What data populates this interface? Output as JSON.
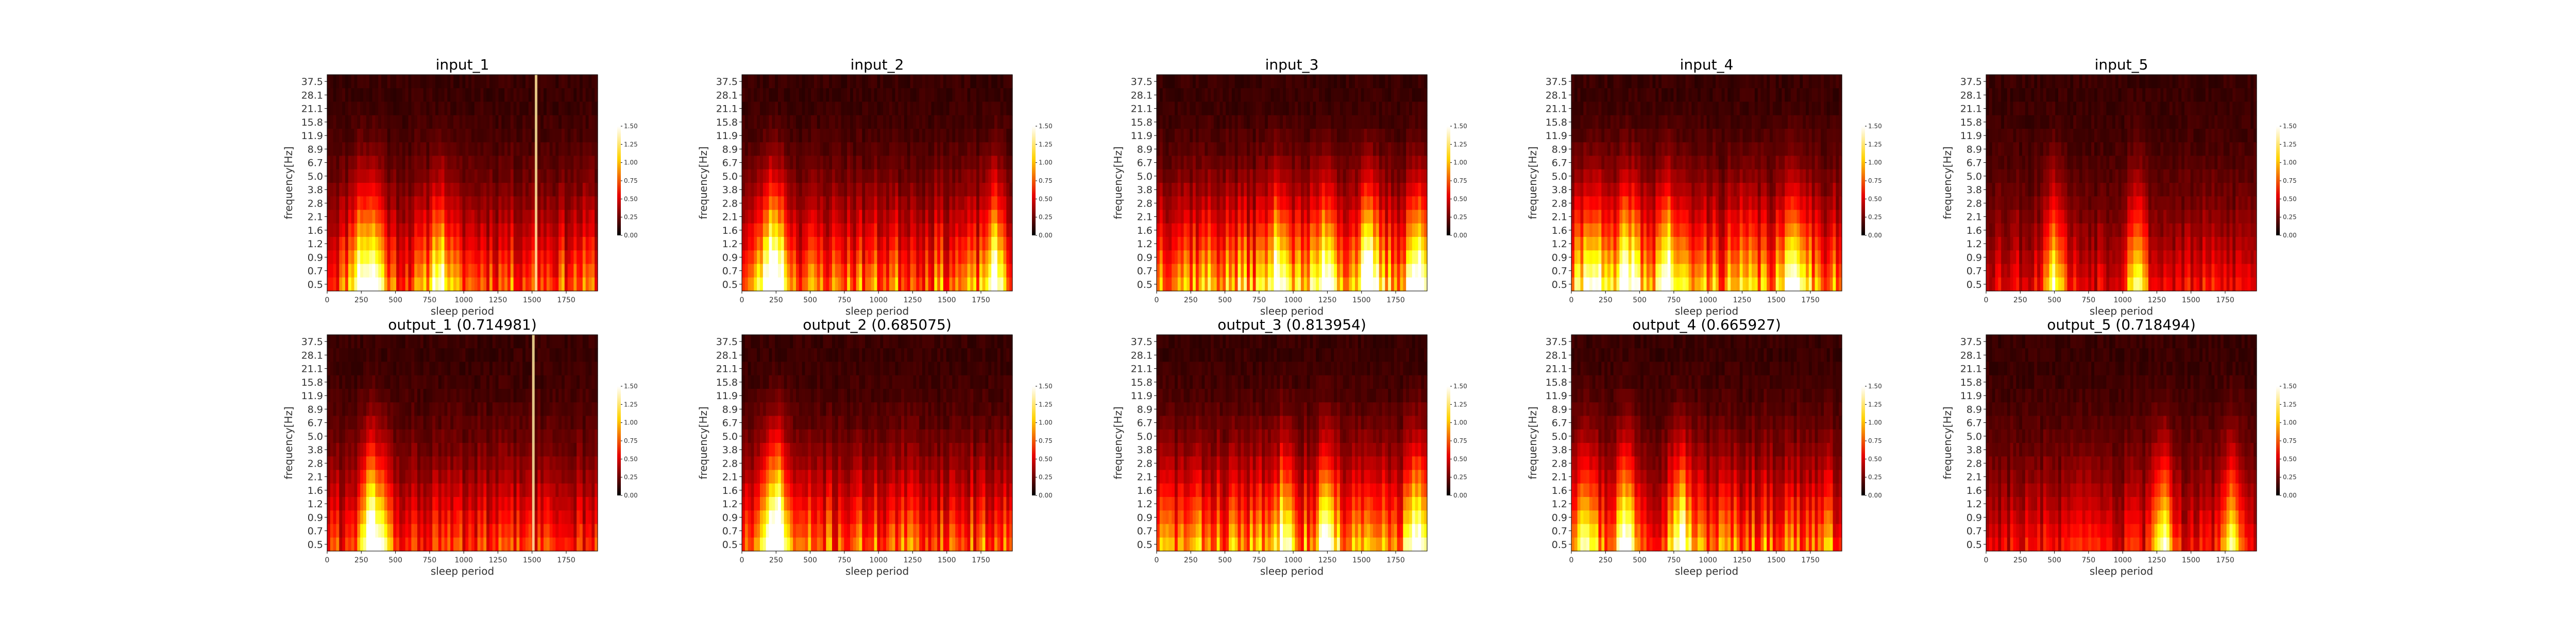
{
  "chart_data": {
    "type": "heatmap",
    "colormap": "hot",
    "xlabel": "sleep period",
    "ylabel": "frequency[Hz]",
    "xlim": [
      0,
      1980
    ],
    "x_ticks": [
      0,
      250,
      500,
      750,
      1000,
      1250,
      1500,
      1750
    ],
    "y_ticks": [
      "37.5",
      "28.1",
      "21.1",
      "15.8",
      "11.9",
      "8.9",
      "6.7",
      "5.0",
      "3.8",
      "2.8",
      "2.1",
      "1.6",
      "1.2",
      "0.9",
      "0.7",
      "0.5"
    ],
    "colorbar": {
      "range": [
        0.0,
        1.5
      ],
      "ticks": [
        "0.00",
        "0.25",
        "0.50",
        "0.75",
        "1.00",
        "1.25",
        "1.50"
      ]
    },
    "panels": [
      {
        "title": "input_1",
        "row": 0,
        "col": 0,
        "mean_intensity": 0.55,
        "seed": 11,
        "hot_x": [
          240,
          350,
          820
        ],
        "bright_line_x": 1520
      },
      {
        "title": "input_2",
        "row": 0,
        "col": 1,
        "mean_intensity": 0.6,
        "seed": 23,
        "hot_x": [
          200,
          270,
          1850
        ],
        "bright_line_x": null
      },
      {
        "title": "input_3",
        "row": 0,
        "col": 2,
        "mean_intensity": 0.75,
        "seed": 37,
        "hot_x": [
          900,
          1250,
          1550,
          1900
        ],
        "bright_line_x": null
      },
      {
        "title": "input_4",
        "row": 0,
        "col": 3,
        "mean_intensity": 0.7,
        "seed": 41,
        "hot_x": [
          150,
          420,
          700,
          1650
        ],
        "bright_line_x": null
      },
      {
        "title": "input_5",
        "row": 0,
        "col": 4,
        "mean_intensity": 0.35,
        "seed": 53,
        "hot_x": [
          500,
          1100
        ],
        "bright_line_x": null
      },
      {
        "title": "output_1 (0.714981)",
        "row": 1,
        "col": 0,
        "mean_intensity": 0.45,
        "seed": 61,
        "hot_x": [
          300,
          380
        ],
        "bright_line_x": 1500
      },
      {
        "title": "output_2 (0.685075)",
        "row": 1,
        "col": 1,
        "mean_intensity": 0.55,
        "seed": 71,
        "hot_x": [
          230,
          270
        ],
        "bright_line_x": null
      },
      {
        "title": "output_3 (0.813954)",
        "row": 1,
        "col": 2,
        "mean_intensity": 0.65,
        "seed": 83,
        "hot_x": [
          950,
          1250,
          1900
        ],
        "bright_line_x": null
      },
      {
        "title": "output_4 (0.665927)",
        "row": 1,
        "col": 3,
        "mean_intensity": 0.6,
        "seed": 97,
        "hot_x": [
          100,
          400,
          800
        ],
        "bright_line_x": null
      },
      {
        "title": "output_5 (0.718494)",
        "row": 1,
        "col": 4,
        "mean_intensity": 0.35,
        "seed": 103,
        "hot_x": [
          1300,
          1800
        ],
        "bright_line_x": null
      }
    ]
  }
}
